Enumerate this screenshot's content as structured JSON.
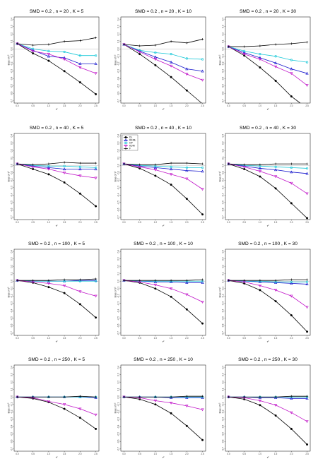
{
  "colors": {
    "DL": "#000000",
    "REML": "#1515cc",
    "HP": "#18c8d8",
    "KDM": "#c013c8",
    "zero_line": "#aaaaaa"
  },
  "legend": [
    "DL",
    "REML",
    "HP",
    "KDM",
    "F"
  ],
  "chart_data": [
    {
      "type": "line",
      "title": "SMD = 0.2 , n = 20 , K = 5",
      "xlabel": "τ²",
      "ylabel": "Bias of τ²",
      "x": [
        0,
        0.5,
        1,
        1.5,
        2,
        2.5
      ],
      "ylim": [
        -0.7,
        0.4
      ],
      "series": [
        {
          "name": "DL",
          "values": [
            0.07,
            -0.06,
            -0.16,
            -0.3,
            -0.45,
            -0.61
          ]
        },
        {
          "name": "REML",
          "values": [
            0.07,
            -0.02,
            -0.1,
            -0.12,
            -0.2,
            -0.2
          ]
        },
        {
          "name": "HP",
          "values": [
            0.07,
            0.0,
            -0.03,
            -0.04,
            -0.09,
            -0.09
          ]
        },
        {
          "name": "KDM",
          "values": [
            0.07,
            -0.03,
            -0.07,
            -0.14,
            -0.25,
            -0.33
          ]
        },
        {
          "name": "F",
          "values": [
            0.07,
            0.05,
            0.06,
            0.1,
            0.11,
            0.15
          ]
        }
      ]
    },
    {
      "type": "line",
      "title": "SMD = 0.2 , n = 20 , K = 10",
      "xlabel": "τ²",
      "ylabel": "Bias of τ²",
      "x": [
        0,
        0.5,
        1,
        1.5,
        2,
        2.5
      ],
      "ylim": [
        -0.7,
        0.4
      ],
      "series": [
        {
          "name": "DL",
          "values": [
            0.06,
            -0.07,
            -0.22,
            -0.38,
            -0.56,
            -0.74
          ]
        },
        {
          "name": "REML",
          "values": [
            0.06,
            -0.03,
            -0.11,
            -0.18,
            -0.27,
            -0.3
          ]
        },
        {
          "name": "HP",
          "values": [
            0.06,
            -0.02,
            -0.05,
            -0.07,
            -0.13,
            -0.14
          ]
        },
        {
          "name": "KDM",
          "values": [
            0.06,
            -0.04,
            -0.14,
            -0.23,
            -0.34,
            -0.42
          ]
        },
        {
          "name": "F",
          "values": [
            0.06,
            0.04,
            0.05,
            0.1,
            0.08,
            0.13
          ]
        }
      ]
    },
    {
      "type": "line",
      "title": "SMD = 0.2 , n = 20 , K = 30",
      "xlabel": "τ²",
      "ylabel": "Bias of τ²",
      "x": [
        0,
        0.5,
        1,
        1.5,
        2,
        2.5
      ],
      "ylim": [
        -0.7,
        0.4
      ],
      "series": [
        {
          "name": "DL",
          "values": [
            0.03,
            -0.09,
            -0.25,
            -0.43,
            -0.64,
            -0.8
          ]
        },
        {
          "name": "REML",
          "values": [
            0.03,
            -0.05,
            -0.12,
            -0.19,
            -0.27,
            -0.33
          ]
        },
        {
          "name": "HP",
          "values": [
            0.03,
            -0.03,
            -0.07,
            -0.1,
            -0.15,
            -0.18
          ]
        },
        {
          "name": "KDM",
          "values": [
            0.03,
            -0.07,
            -0.14,
            -0.24,
            -0.33,
            -0.49
          ]
        },
        {
          "name": "F",
          "values": [
            0.03,
            0.03,
            0.04,
            0.06,
            0.07,
            0.09
          ]
        }
      ]
    },
    {
      "type": "line",
      "title": "SMD = 0.2 , n = 40 , K = 5",
      "xlabel": "τ²",
      "ylabel": "Bias of τ²",
      "x": [
        0,
        0.5,
        1,
        1.5,
        2,
        2.5
      ],
      "ylim": [
        -0.7,
        0.4
      ],
      "series": [
        {
          "name": "DL",
          "values": [
            0.02,
            -0.05,
            -0.12,
            -0.23,
            -0.38,
            -0.55
          ]
        },
        {
          "name": "REML",
          "values": [
            0.02,
            -0.01,
            -0.03,
            -0.05,
            -0.05,
            -0.05
          ]
        },
        {
          "name": "HP",
          "values": [
            0.02,
            0.0,
            -0.01,
            -0.01,
            -0.02,
            -0.03
          ]
        },
        {
          "name": "KDM",
          "values": [
            0.02,
            -0.02,
            -0.05,
            -0.1,
            -0.14,
            -0.17
          ]
        },
        {
          "name": "F",
          "values": [
            0.02,
            0.01,
            0.02,
            0.04,
            0.03,
            0.03
          ]
        }
      ]
    },
    {
      "type": "line",
      "title": "SMD = 0.2 , n = 40 , K = 10",
      "xlabel": "τ²",
      "ylabel": "Bias of τ²",
      "x": [
        0,
        0.5,
        1,
        1.5,
        2,
        2.5
      ],
      "ylim": [
        -0.7,
        0.4
      ],
      "legend": "top-left",
      "series": [
        {
          "name": "DL",
          "values": [
            0.02,
            -0.04,
            -0.14,
            -0.26,
            -0.45,
            -0.66
          ]
        },
        {
          "name": "REML",
          "values": [
            0.02,
            -0.01,
            -0.03,
            -0.05,
            -0.07,
            -0.08
          ]
        },
        {
          "name": "HP",
          "values": [
            0.02,
            0.0,
            -0.01,
            -0.02,
            -0.03,
            -0.03
          ]
        },
        {
          "name": "KDM",
          "values": [
            0.02,
            -0.02,
            -0.06,
            -0.12,
            -0.18,
            -0.32
          ]
        },
        {
          "name": "F",
          "values": [
            0.02,
            0.01,
            0.01,
            0.03,
            0.03,
            0.02
          ]
        }
      ]
    },
    {
      "type": "line",
      "title": "SMD = 0.2 , n = 40 , K = 30",
      "xlabel": "τ²",
      "ylabel": "Bias of τ²",
      "x": [
        0,
        0.5,
        1,
        1.5,
        2,
        2.5
      ],
      "ylim": [
        -0.7,
        0.4
      ],
      "series": [
        {
          "name": "DL",
          "values": [
            0.02,
            -0.05,
            -0.15,
            -0.31,
            -0.51,
            -0.71
          ]
        },
        {
          "name": "REML",
          "values": [
            0.02,
            -0.01,
            -0.04,
            -0.06,
            -0.09,
            -0.11
          ]
        },
        {
          "name": "HP",
          "values": [
            0.02,
            0.0,
            -0.01,
            -0.02,
            -0.03,
            -0.04
          ]
        },
        {
          "name": "KDM",
          "values": [
            0.02,
            -0.02,
            -0.08,
            -0.15,
            -0.24,
            -0.38
          ]
        },
        {
          "name": "F",
          "values": [
            0.02,
            0.01,
            0.01,
            0.02,
            0.02,
            0.02
          ]
        }
      ]
    },
    {
      "type": "line",
      "title": "SMD = 0.2 , n = 100 , K = 5",
      "xlabel": "τ²",
      "ylabel": "Bias of τ²",
      "x": [
        0,
        0.5,
        1,
        1.5,
        2,
        2.5
      ],
      "ylim": [
        -0.7,
        0.4
      ],
      "series": [
        {
          "name": "DL",
          "values": [
            0.01,
            -0.02,
            -0.08,
            -0.16,
            -0.31,
            -0.49
          ]
        },
        {
          "name": "REML",
          "values": [
            0.01,
            0.0,
            0.0,
            0.0,
            0.01,
            0.01
          ]
        },
        {
          "name": "HP",
          "values": [
            0.01,
            0.0,
            0.0,
            0.0,
            0.0,
            0.0
          ]
        },
        {
          "name": "KDM",
          "values": [
            0.01,
            -0.01,
            -0.03,
            -0.06,
            -0.14,
            -0.2
          ]
        },
        {
          "name": "F",
          "values": [
            0.01,
            0.01,
            0.01,
            0.02,
            0.02,
            0.03
          ]
        }
      ]
    },
    {
      "type": "line",
      "title": "SMD = 0.2 , n = 100 , K = 10",
      "xlabel": "τ²",
      "ylabel": "Bias of τ²",
      "x": [
        0,
        0.5,
        1,
        1.5,
        2,
        2.5
      ],
      "ylim": [
        -0.7,
        0.4
      ],
      "series": [
        {
          "name": "DL",
          "values": [
            0.01,
            -0.02,
            -0.1,
            -0.21,
            -0.38,
            -0.57
          ]
        },
        {
          "name": "REML",
          "values": [
            0.01,
            0.0,
            -0.01,
            -0.01,
            -0.02,
            -0.02
          ]
        },
        {
          "name": "HP",
          "values": [
            0.01,
            0.0,
            0.0,
            0.0,
            0.0,
            0.0
          ]
        },
        {
          "name": "KDM",
          "values": [
            0.01,
            -0.01,
            -0.05,
            -0.1,
            -0.18,
            -0.28
          ]
        },
        {
          "name": "F",
          "values": [
            0.01,
            0.01,
            0.01,
            0.01,
            0.01,
            0.02
          ]
        }
      ]
    },
    {
      "type": "line",
      "title": "SMD = 0.2 , n = 100 , K = 30",
      "xlabel": "τ²",
      "ylabel": "Bias of τ²",
      "x": [
        0,
        0.5,
        1,
        1.5,
        2,
        2.5
      ],
      "ylim": [
        -0.7,
        0.4
      ],
      "series": [
        {
          "name": "DL",
          "values": [
            0.01,
            -0.03,
            -0.12,
            -0.27,
            -0.46,
            -0.68
          ]
        },
        {
          "name": "REML",
          "values": [
            0.01,
            0.0,
            -0.01,
            -0.02,
            -0.03,
            -0.04
          ]
        },
        {
          "name": "HP",
          "values": [
            0.01,
            0.0,
            0.0,
            -0.01,
            -0.01,
            -0.01
          ]
        },
        {
          "name": "KDM",
          "values": [
            0.01,
            -0.01,
            -0.06,
            -0.12,
            -0.2,
            -0.35
          ]
        },
        {
          "name": "F",
          "values": [
            0.01,
            0.01,
            0.01,
            0.01,
            0.02,
            0.02
          ]
        }
      ]
    },
    {
      "type": "line",
      "title": "SMD = 0.2 , n = 250 , K = 5",
      "xlabel": "τ²",
      "ylabel": "Bias of τ²",
      "x": [
        0,
        0.5,
        1,
        1.5,
        2,
        2.5
      ],
      "ylim": [
        -0.7,
        0.4
      ],
      "series": [
        {
          "name": "DL",
          "values": [
            0.0,
            -0.02,
            -0.07,
            -0.16,
            -0.28,
            -0.43
          ]
        },
        {
          "name": "REML",
          "values": [
            0.0,
            0.0,
            0.0,
            0.0,
            0.0,
            -0.01
          ]
        },
        {
          "name": "HP",
          "values": [
            0.0,
            0.0,
            0.0,
            0.0,
            0.0,
            0.0
          ]
        },
        {
          "name": "KDM",
          "values": [
            0.0,
            -0.01,
            -0.06,
            -0.1,
            -0.16,
            -0.24
          ]
        },
        {
          "name": "F",
          "values": [
            0.0,
            0.0,
            0.0,
            0.0,
            0.01,
            0.0
          ]
        }
      ]
    },
    {
      "type": "line",
      "title": "SMD = 0.2 , n = 250 , K = 10",
      "xlabel": "τ²",
      "ylabel": "Bias of τ²",
      "x": [
        0,
        0.5,
        1,
        1.5,
        2,
        2.5
      ],
      "ylim": [
        -0.7,
        0.4
      ],
      "series": [
        {
          "name": "DL",
          "values": [
            0.0,
            -0.03,
            -0.1,
            -0.22,
            -0.39,
            -0.58
          ]
        },
        {
          "name": "REML",
          "values": [
            0.0,
            0.0,
            0.0,
            -0.01,
            -0.01,
            -0.01
          ]
        },
        {
          "name": "HP",
          "values": [
            0.0,
            0.0,
            0.0,
            0.0,
            0.0,
            0.0
          ]
        },
        {
          "name": "KDM",
          "values": [
            0.0,
            -0.01,
            -0.05,
            -0.08,
            -0.12,
            -0.17
          ]
        },
        {
          "name": "F",
          "values": [
            0.0,
            0.0,
            0.0,
            0.0,
            0.01,
            0.01
          ]
        }
      ]
    },
    {
      "type": "line",
      "title": "SMD = 0.2 , n = 250 , K = 30",
      "xlabel": "τ²",
      "ylabel": "Bias of τ²",
      "x": [
        0,
        0.5,
        1,
        1.5,
        2,
        2.5
      ],
      "ylim": [
        -0.7,
        0.4
      ],
      "series": [
        {
          "name": "DL",
          "values": [
            0.0,
            -0.03,
            -0.11,
            -0.25,
            -0.43,
            -0.64
          ]
        },
        {
          "name": "REML",
          "values": [
            0.0,
            0.0,
            -0.01,
            -0.01,
            -0.02,
            -0.02
          ]
        },
        {
          "name": "HP",
          "values": [
            0.0,
            0.0,
            0.0,
            0.0,
            0.0,
            0.0
          ]
        },
        {
          "name": "KDM",
          "values": [
            0.0,
            -0.01,
            -0.05,
            -0.11,
            -0.21,
            -0.33
          ]
        },
        {
          "name": "F",
          "values": [
            0.0,
            0.0,
            0.0,
            0.0,
            0.01,
            0.01
          ]
        }
      ]
    }
  ]
}
